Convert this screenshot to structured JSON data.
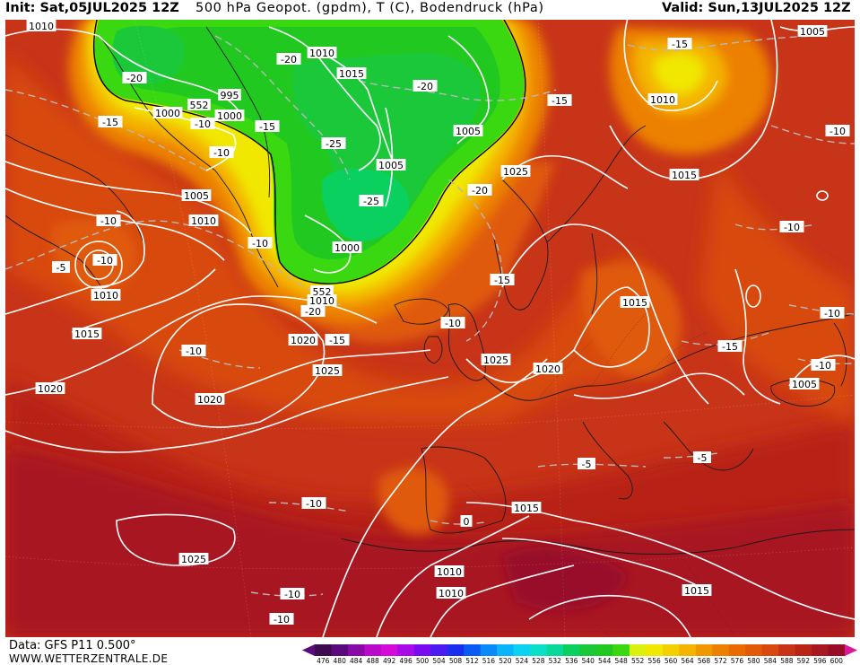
{
  "header": {
    "init": "Init: Sat,05JUL2025 12Z",
    "title": "500 hPa Geopot. (gpdm), T (C), Bodendruck (hPa)",
    "valid": "Valid: Sun,13JUL2025 12Z"
  },
  "footer": {
    "data_source": "Data: GFS P11 0.500°",
    "website": "WWW.WETTERZENTRALE.DE"
  },
  "scale": {
    "values": [
      "476",
      "480",
      "484",
      "488",
      "492",
      "496",
      "500",
      "504",
      "508",
      "512",
      "516",
      "520",
      "524",
      "528",
      "532",
      "536",
      "540",
      "544",
      "548",
      "552",
      "556",
      "560",
      "564",
      "568",
      "572",
      "576",
      "580",
      "584",
      "588",
      "592",
      "596",
      "600"
    ],
    "colors": [
      "#3d0a4f",
      "#5a0a7a",
      "#8a0aa8",
      "#b80ac8",
      "#d40ad8",
      "#a80ae8",
      "#7a0af0",
      "#4a1af0",
      "#1a2ef0",
      "#0a5af4",
      "#0a8af8",
      "#0ab4fa",
      "#0ad2f0",
      "#0ae0c8",
      "#0ad898",
      "#0ad060",
      "#1ac83a",
      "#20c820",
      "#3ad810",
      "#dcf010",
      "#f0e800",
      "#f4d000",
      "#f4b400",
      "#f09800",
      "#ec8000",
      "#e86a00",
      "#e05a08",
      "#d84810",
      "#c83418",
      "#b82418",
      "#a81820",
      "#980c28"
    ],
    "left_arrow_color": "#5a0a7a",
    "right_arrow_color": "#d81a9a"
  },
  "isobars": [
    {
      "text": "1010",
      "kind": "pressure"
    },
    {
      "text": "1005",
      "kind": "pressure"
    },
    {
      "text": "1010",
      "kind": "pressure"
    },
    {
      "text": "1015",
      "kind": "pressure"
    },
    {
      "text": "995",
      "kind": "pressure"
    },
    {
      "text": "1000",
      "kind": "pressure"
    },
    {
      "text": "1000",
      "kind": "pressure"
    },
    {
      "text": "1005",
      "kind": "pressure"
    },
    {
      "text": "1005",
      "kind": "pressure"
    },
    {
      "text": "1010",
      "kind": "pressure"
    },
    {
      "text": "1005",
      "kind": "pressure"
    },
    {
      "text": "1000",
      "kind": "pressure"
    },
    {
      "text": "1025",
      "kind": "pressure"
    },
    {
      "text": "1010",
      "kind": "pressure"
    },
    {
      "text": "1015",
      "kind": "pressure"
    },
    {
      "text": "1010",
      "kind": "pressure"
    },
    {
      "text": "1015",
      "kind": "pressure"
    },
    {
      "text": "1010",
      "kind": "pressure"
    },
    {
      "text": "1020",
      "kind": "pressure"
    },
    {
      "text": "1020",
      "kind": "pressure"
    },
    {
      "text": "1025",
      "kind": "pressure"
    },
    {
      "text": "1015",
      "kind": "pressure"
    },
    {
      "text": "1020",
      "kind": "pressure"
    },
    {
      "text": "1020",
      "kind": "pressure"
    },
    {
      "text": "1025",
      "kind": "pressure"
    },
    {
      "text": "1005",
      "kind": "pressure"
    },
    {
      "text": "1015",
      "kind": "pressure"
    },
    {
      "text": "1010",
      "kind": "pressure"
    },
    {
      "text": "1010",
      "kind": "pressure"
    },
    {
      "text": "1015",
      "kind": "pressure"
    },
    {
      "text": "1025",
      "kind": "pressure"
    },
    {
      "text": "552",
      "kind": "geopot"
    },
    {
      "text": "552",
      "kind": "geopot"
    }
  ],
  "isotherms": [
    {
      "text": "-20"
    },
    {
      "text": "-20"
    },
    {
      "text": "-20"
    },
    {
      "text": "-15"
    },
    {
      "text": "-10"
    },
    {
      "text": "-15"
    },
    {
      "text": "-25"
    },
    {
      "text": "-25"
    },
    {
      "text": "-20"
    },
    {
      "text": "-15"
    },
    {
      "text": "-15"
    },
    {
      "text": "-10"
    },
    {
      "text": "-10"
    },
    {
      "text": "-10"
    },
    {
      "text": "-10"
    },
    {
      "text": "-20"
    },
    {
      "text": "-15"
    },
    {
      "text": "-15"
    },
    {
      "text": "-10"
    },
    {
      "text": "-10"
    },
    {
      "text": "-15"
    },
    {
      "text": "-10"
    },
    {
      "text": "-10"
    },
    {
      "text": "-5"
    },
    {
      "text": "-10"
    },
    {
      "text": "-5"
    },
    {
      "text": "0"
    },
    {
      "text": "-10"
    },
    {
      "text": "-10"
    },
    {
      "text": "-10"
    },
    {
      "text": "-10"
    },
    {
      "text": "-5"
    }
  ]
}
